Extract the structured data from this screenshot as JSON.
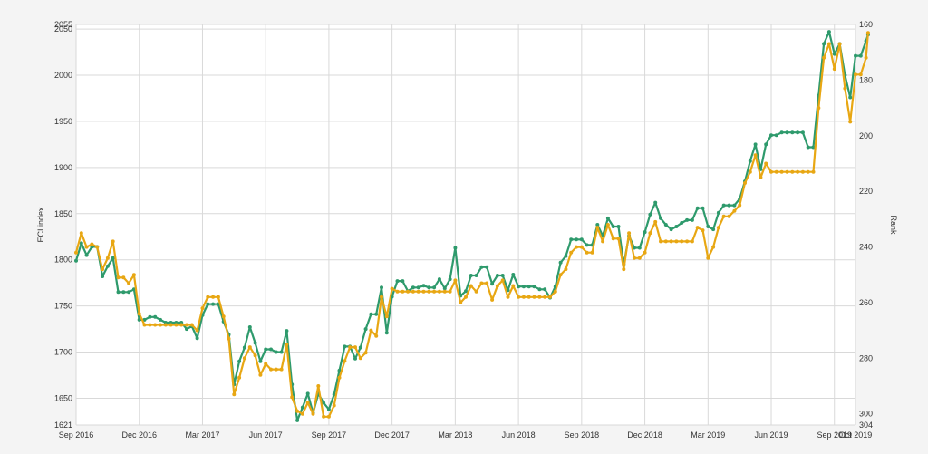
{
  "chart_data": {
    "type": "line",
    "x_tick_labels": [
      "Sep 2016",
      "Dec 2016",
      "Mar 2017",
      "Jun 2017",
      "Sep 2017",
      "Dec 2017",
      "Mar 2018",
      "Jun 2018",
      "Sep 2018",
      "Dec 2018",
      "Mar 2019",
      "Jun 2019",
      "Sep 2019",
      "Oct 2019"
    ],
    "x_tick_months": [
      0,
      3,
      6,
      9,
      12,
      15,
      18,
      21,
      24,
      27,
      30,
      33,
      36,
      37
    ],
    "xlim_months": [
      0,
      37
    ],
    "y_left": {
      "label": "ECI index",
      "ylim": [
        1621,
        2055
      ],
      "ticks": [
        1621,
        1650,
        1700,
        1750,
        1800,
        1850,
        1900,
        1950,
        2000,
        2050,
        2055
      ]
    },
    "y_right": {
      "label": "Rank",
      "ylim": [
        160,
        304
      ],
      "inverted": true,
      "ticks": [
        160,
        180,
        200,
        220,
        240,
        260,
        280,
        300,
        304
      ]
    },
    "grid": true,
    "colors": {
      "eci_line": "#2e9a6c",
      "rank_line": "#e8a713",
      "grid": "#d9d9d9",
      "background": "#ffffff"
    },
    "series": [
      {
        "axis": "left",
        "color": "#2e9a6c",
        "points": [
          [
            0.0,
            1799
          ],
          [
            0.25,
            1818
          ],
          [
            0.5,
            1805
          ],
          [
            0.75,
            1814
          ],
          [
            1.0,
            1814
          ],
          [
            1.25,
            1782
          ],
          [
            1.5,
            1793
          ],
          [
            1.75,
            1802
          ],
          [
            2.0,
            1765
          ],
          [
            2.25,
            1765
          ],
          [
            2.5,
            1765
          ],
          [
            2.75,
            1768
          ],
          [
            3.0,
            1735
          ],
          [
            3.25,
            1735
          ],
          [
            3.5,
            1738
          ],
          [
            3.75,
            1738
          ],
          [
            4.0,
            1735
          ],
          [
            4.25,
            1732
          ],
          [
            4.5,
            1732
          ],
          [
            4.75,
            1732
          ],
          [
            5.0,
            1732
          ],
          [
            5.25,
            1725
          ],
          [
            5.5,
            1728
          ],
          [
            5.75,
            1715
          ],
          [
            6.0,
            1740
          ],
          [
            6.25,
            1752
          ],
          [
            6.5,
            1752
          ],
          [
            6.75,
            1752
          ],
          [
            7.0,
            1733
          ],
          [
            7.25,
            1719
          ],
          [
            7.5,
            1665
          ],
          [
            7.75,
            1690
          ],
          [
            8.0,
            1705
          ],
          [
            8.25,
            1727
          ],
          [
            8.5,
            1710
          ],
          [
            8.75,
            1690
          ],
          [
            9.0,
            1703
          ],
          [
            9.25,
            1703
          ],
          [
            9.5,
            1700
          ],
          [
            9.75,
            1700
          ],
          [
            10.0,
            1723
          ],
          [
            10.25,
            1665
          ],
          [
            10.5,
            1626
          ],
          [
            10.75,
            1640
          ],
          [
            11.0,
            1655
          ],
          [
            11.25,
            1634
          ],
          [
            11.5,
            1655
          ],
          [
            11.75,
            1645
          ],
          [
            12.0,
            1638
          ],
          [
            12.25,
            1654
          ],
          [
            12.5,
            1680
          ],
          [
            12.75,
            1706
          ],
          [
            13.0,
            1706
          ],
          [
            13.25,
            1693
          ],
          [
            13.5,
            1705
          ],
          [
            13.75,
            1725
          ],
          [
            14.0,
            1741
          ],
          [
            14.25,
            1741
          ],
          [
            14.5,
            1770
          ],
          [
            14.75,
            1721
          ],
          [
            15.0,
            1760
          ],
          [
            15.25,
            1777
          ],
          [
            15.5,
            1777
          ],
          [
            15.75,
            1766
          ],
          [
            16.0,
            1770
          ],
          [
            16.25,
            1770
          ],
          [
            16.5,
            1772
          ],
          [
            16.75,
            1770
          ],
          [
            17.0,
            1770
          ],
          [
            17.25,
            1779
          ],
          [
            17.5,
            1769
          ],
          [
            17.75,
            1779
          ],
          [
            18.0,
            1813
          ],
          [
            18.25,
            1761
          ],
          [
            18.5,
            1766
          ],
          [
            18.75,
            1783
          ],
          [
            19.0,
            1783
          ],
          [
            19.25,
            1792
          ],
          [
            19.5,
            1792
          ],
          [
            19.75,
            1774
          ],
          [
            20.0,
            1783
          ],
          [
            20.25,
            1783
          ],
          [
            20.5,
            1767
          ],
          [
            20.75,
            1784
          ],
          [
            21.0,
            1771
          ],
          [
            21.25,
            1771
          ],
          [
            21.5,
            1771
          ],
          [
            21.75,
            1771
          ],
          [
            22.0,
            1768
          ],
          [
            22.25,
            1768
          ],
          [
            22.5,
            1759
          ],
          [
            22.75,
            1771
          ],
          [
            23.0,
            1797
          ],
          [
            23.25,
            1804
          ],
          [
            23.5,
            1822
          ],
          [
            23.75,
            1822
          ],
          [
            24.0,
            1822
          ],
          [
            24.25,
            1816
          ],
          [
            24.5,
            1816
          ],
          [
            24.75,
            1838
          ],
          [
            25.0,
            1826
          ],
          [
            25.25,
            1845
          ],
          [
            25.5,
            1836
          ],
          [
            25.75,
            1836
          ],
          [
            26.0,
            1795
          ],
          [
            26.25,
            1826
          ],
          [
            26.5,
            1813
          ],
          [
            26.75,
            1813
          ],
          [
            27.0,
            1830
          ],
          [
            27.25,
            1849
          ],
          [
            27.5,
            1862
          ],
          [
            27.75,
            1845
          ],
          [
            28.0,
            1838
          ],
          [
            28.25,
            1833
          ],
          [
            28.5,
            1836
          ],
          [
            28.75,
            1840
          ],
          [
            29.0,
            1843
          ],
          [
            29.25,
            1843
          ],
          [
            29.5,
            1856
          ],
          [
            29.75,
            1856
          ],
          [
            30.0,
            1836
          ],
          [
            30.25,
            1833
          ],
          [
            30.5,
            1851
          ],
          [
            30.75,
            1859
          ],
          [
            31.0,
            1859
          ],
          [
            31.25,
            1859
          ],
          [
            31.5,
            1866
          ],
          [
            31.75,
            1885
          ],
          [
            32.0,
            1907
          ],
          [
            32.25,
            1925
          ],
          [
            32.5,
            1898
          ],
          [
            32.75,
            1925
          ],
          [
            33.0,
            1935
          ],
          [
            33.25,
            1935
          ],
          [
            33.5,
            1938
          ],
          [
            33.75,
            1938
          ],
          [
            34.0,
            1938
          ],
          [
            34.25,
            1938
          ],
          [
            34.5,
            1938
          ],
          [
            34.75,
            1922
          ],
          [
            35.0,
            1922
          ],
          [
            35.25,
            1978
          ],
          [
            35.5,
            2034
          ],
          [
            35.75,
            2047
          ],
          [
            36.0,
            2023
          ],
          [
            36.25,
            2034
          ],
          [
            36.5,
            2000
          ],
          [
            36.75,
            1976
          ],
          [
            37.0,
            2021
          ],
          [
            37.25,
            2021
          ],
          [
            37.5,
            2037
          ],
          [
            37.6,
            2044
          ]
        ]
      },
      {
        "axis": "right",
        "color": "#e8a713",
        "points": [
          [
            0.0,
            242
          ],
          [
            0.25,
            235
          ],
          [
            0.5,
            240
          ],
          [
            0.75,
            239
          ],
          [
            1.0,
            240
          ],
          [
            1.25,
            248
          ],
          [
            1.5,
            244
          ],
          [
            1.75,
            238
          ],
          [
            2.0,
            251
          ],
          [
            2.25,
            251
          ],
          [
            2.5,
            253
          ],
          [
            2.75,
            250
          ],
          [
            3.0,
            264
          ],
          [
            3.25,
            268
          ],
          [
            3.5,
            268
          ],
          [
            3.75,
            268
          ],
          [
            4.0,
            268
          ],
          [
            4.25,
            268
          ],
          [
            4.5,
            268
          ],
          [
            4.75,
            268
          ],
          [
            5.0,
            268
          ],
          [
            5.25,
            268
          ],
          [
            5.5,
            268
          ],
          [
            5.75,
            270
          ],
          [
            6.0,
            262
          ],
          [
            6.25,
            258
          ],
          [
            6.5,
            258
          ],
          [
            6.75,
            258
          ],
          [
            7.0,
            265
          ],
          [
            7.25,
            273
          ],
          [
            7.5,
            293
          ],
          [
            7.75,
            287
          ],
          [
            8.0,
            280
          ],
          [
            8.25,
            276
          ],
          [
            8.5,
            279
          ],
          [
            8.75,
            286
          ],
          [
            9.0,
            282
          ],
          [
            9.25,
            284
          ],
          [
            9.5,
            284
          ],
          [
            9.75,
            284
          ],
          [
            10.0,
            275
          ],
          [
            10.25,
            294
          ],
          [
            10.5,
            299
          ],
          [
            10.75,
            300
          ],
          [
            11.0,
            296
          ],
          [
            11.25,
            300
          ],
          [
            11.5,
            290
          ],
          [
            11.75,
            301
          ],
          [
            12.0,
            301
          ],
          [
            12.25,
            297
          ],
          [
            12.5,
            287
          ],
          [
            12.75,
            281
          ],
          [
            13.0,
            276
          ],
          [
            13.25,
            276
          ],
          [
            13.5,
            280
          ],
          [
            13.75,
            278
          ],
          [
            14.0,
            270
          ],
          [
            14.25,
            272
          ],
          [
            14.5,
            258
          ],
          [
            14.75,
            265
          ],
          [
            15.0,
            255
          ],
          [
            15.25,
            256
          ],
          [
            15.5,
            256
          ],
          [
            15.75,
            256
          ],
          [
            16.0,
            256
          ],
          [
            16.25,
            256
          ],
          [
            16.5,
            256
          ],
          [
            16.75,
            256
          ],
          [
            17.0,
            256
          ],
          [
            17.25,
            256
          ],
          [
            17.5,
            256
          ],
          [
            17.75,
            256
          ],
          [
            18.0,
            252
          ],
          [
            18.25,
            260
          ],
          [
            18.5,
            258
          ],
          [
            18.75,
            254
          ],
          [
            19.0,
            256
          ],
          [
            19.25,
            253
          ],
          [
            19.5,
            253
          ],
          [
            19.75,
            259
          ],
          [
            20.0,
            254
          ],
          [
            20.25,
            252
          ],
          [
            20.5,
            258
          ],
          [
            20.75,
            254
          ],
          [
            21.0,
            258
          ],
          [
            21.25,
            258
          ],
          [
            21.5,
            258
          ],
          [
            21.75,
            258
          ],
          [
            22.0,
            258
          ],
          [
            22.25,
            258
          ],
          [
            22.5,
            258
          ],
          [
            22.75,
            256
          ],
          [
            23.0,
            250
          ],
          [
            23.25,
            248
          ],
          [
            23.5,
            242
          ],
          [
            23.75,
            240
          ],
          [
            24.0,
            240
          ],
          [
            24.25,
            242
          ],
          [
            24.5,
            242
          ],
          [
            24.75,
            233
          ],
          [
            25.0,
            238
          ],
          [
            25.25,
            232
          ],
          [
            25.5,
            237
          ],
          [
            25.75,
            237
          ],
          [
            26.0,
            248
          ],
          [
            26.25,
            235
          ],
          [
            26.5,
            244
          ],
          [
            26.75,
            244
          ],
          [
            27.0,
            242
          ],
          [
            27.25,
            235
          ],
          [
            27.5,
            231
          ],
          [
            27.75,
            238
          ],
          [
            28.0,
            238
          ],
          [
            28.25,
            238
          ],
          [
            28.5,
            238
          ],
          [
            28.75,
            238
          ],
          [
            29.0,
            238
          ],
          [
            29.25,
            238
          ],
          [
            29.5,
            233
          ],
          [
            29.75,
            234
          ],
          [
            30.0,
            244
          ],
          [
            30.25,
            240
          ],
          [
            30.5,
            233
          ],
          [
            30.75,
            229
          ],
          [
            31.0,
            229
          ],
          [
            31.25,
            227
          ],
          [
            31.5,
            225
          ],
          [
            31.75,
            217
          ],
          [
            32.0,
            213
          ],
          [
            32.25,
            207
          ],
          [
            32.5,
            215
          ],
          [
            32.75,
            210
          ],
          [
            33.0,
            213
          ],
          [
            33.25,
            213
          ],
          [
            33.5,
            213
          ],
          [
            33.75,
            213
          ],
          [
            34.0,
            213
          ],
          [
            34.25,
            213
          ],
          [
            34.5,
            213
          ],
          [
            34.75,
            213
          ],
          [
            35.0,
            213
          ],
          [
            35.25,
            190
          ],
          [
            35.5,
            172
          ],
          [
            35.75,
            167
          ],
          [
            36.0,
            176
          ],
          [
            36.25,
            167
          ],
          [
            36.5,
            183
          ],
          [
            36.75,
            195
          ],
          [
            37.0,
            178
          ],
          [
            37.25,
            178
          ],
          [
            37.5,
            172
          ],
          [
            37.6,
            163
          ]
        ]
      }
    ]
  }
}
